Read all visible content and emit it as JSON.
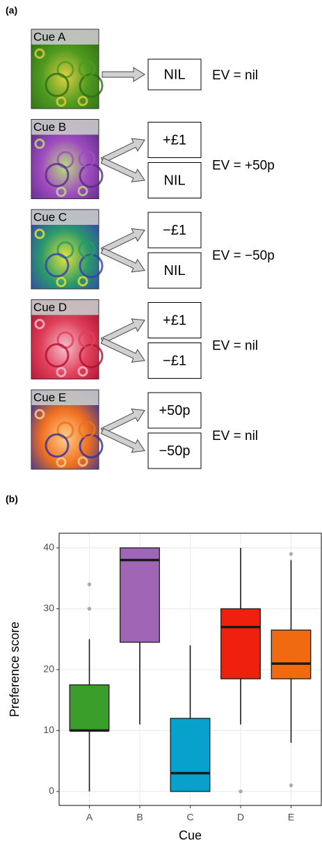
{
  "panel_a": {
    "label": "(a)",
    "cues": [
      {
        "label": "Cue A",
        "outcomes": [
          "NIL"
        ],
        "ev": "EV = nil"
      },
      {
        "label": "Cue B",
        "outcomes": [
          "+£1",
          "NIL"
        ],
        "ev": "EV = +50p"
      },
      {
        "label": "Cue C",
        "outcomes": [
          "−£1",
          "NIL"
        ],
        "ev": "EV = −50p"
      },
      {
        "label": "Cue D",
        "outcomes": [
          "+£1",
          "−£1"
        ],
        "ev": "EV = nil"
      },
      {
        "label": "Cue E",
        "outcomes": [
          "+50p",
          "−50p"
        ],
        "ev": "EV = nil"
      }
    ]
  },
  "chart_data": {
    "type": "boxplot",
    "panel_label": "(b)",
    "x_label": "Cue",
    "y_label": "Preference score",
    "categories": [
      "A",
      "B",
      "C",
      "D",
      "E"
    ],
    "boxes": [
      {
        "min": 0,
        "q1": 10,
        "median": 10,
        "q3": 17.5,
        "max": 25,
        "outliers": [
          30,
          34
        ],
        "color": "#3a9e2a"
      },
      {
        "min": 11,
        "q1": 24.5,
        "median": 38,
        "q3": 40,
        "max": 40,
        "outliers": [],
        "color": "#a066b6"
      },
      {
        "min": 0,
        "q1": 0,
        "median": 3,
        "q3": 12,
        "max": 24,
        "outliers": [],
        "color": "#06a2cb"
      },
      {
        "min": 11,
        "q1": 18.5,
        "median": 27,
        "q3": 30,
        "max": 40,
        "outliers": [
          0
        ],
        "color": "#f0200f"
      },
      {
        "min": 8,
        "q1": 18.5,
        "median": 21,
        "q3": 26.5,
        "max": 38,
        "outliers": [
          1,
          39
        ],
        "color": "#f26a0f"
      }
    ],
    "ylim": [
      -2.3,
      42.4
    ],
    "yticks": [
      0,
      10,
      20,
      30,
      40
    ],
    "grid": true
  }
}
